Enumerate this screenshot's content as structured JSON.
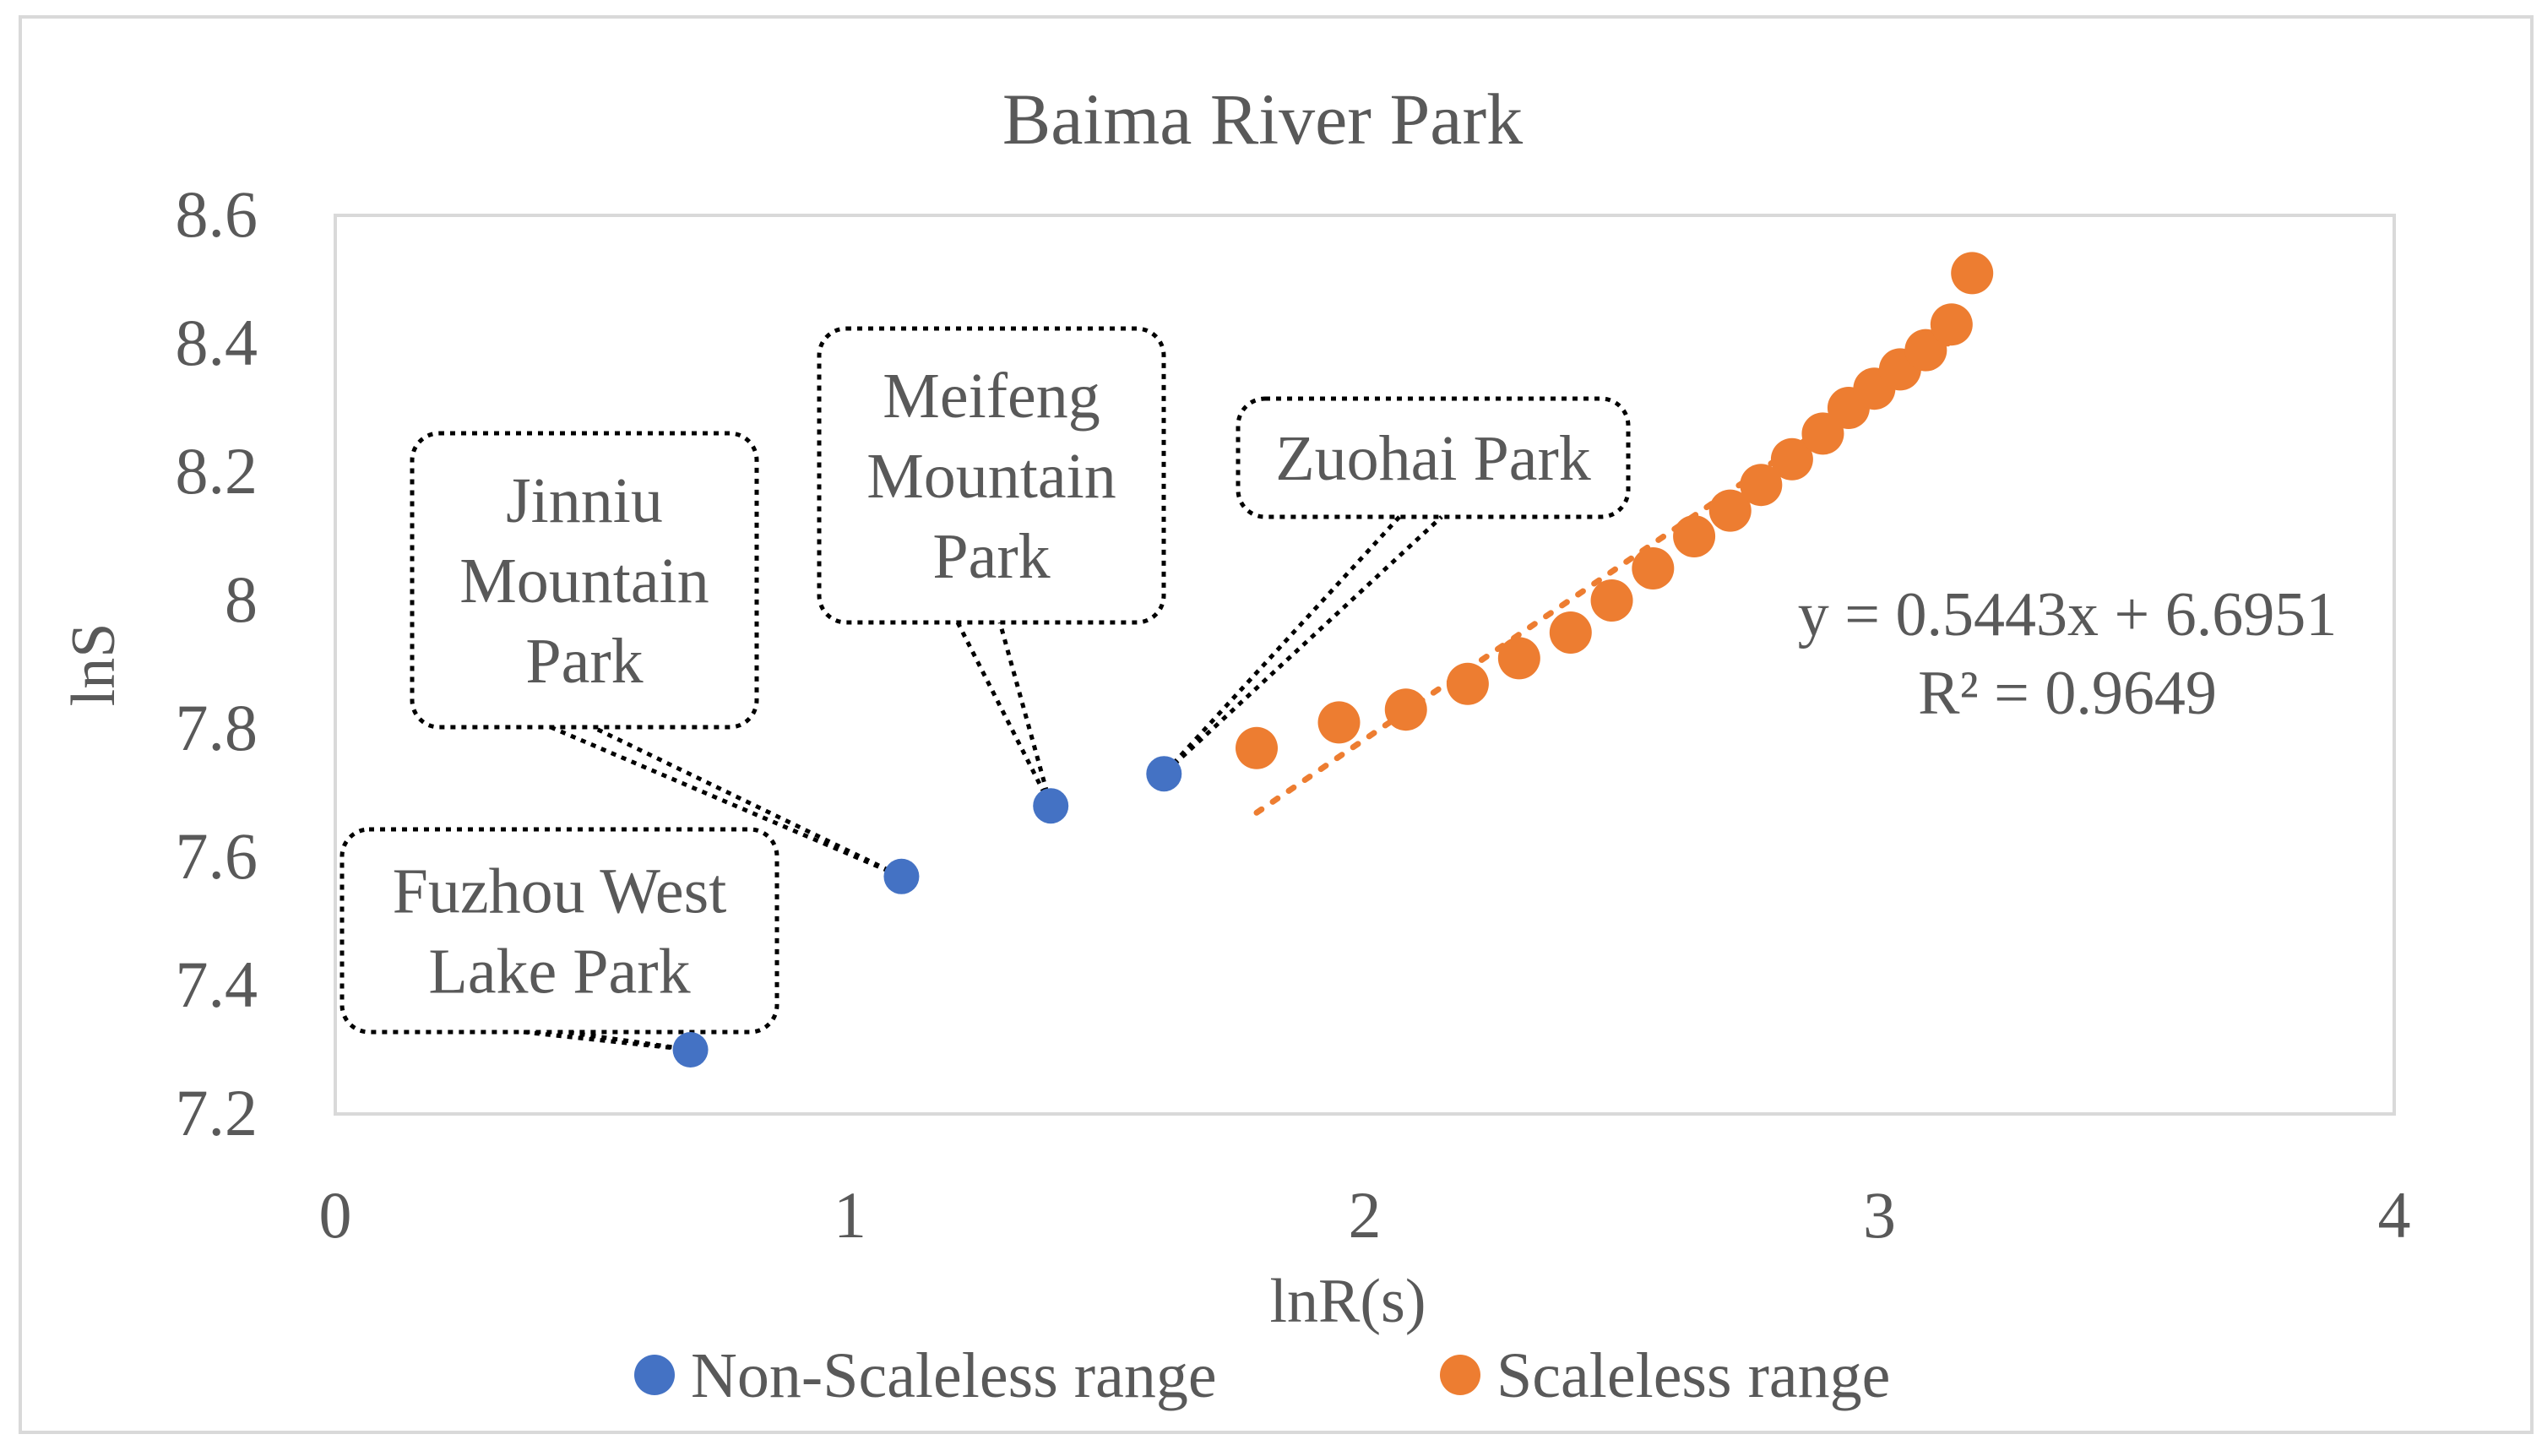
{
  "chart_data": {
    "type": "scatter",
    "title": "Baima River Park",
    "xlabel": "lnR(s)",
    "ylabel": "lnS",
    "xlim": [
      0,
      4
    ],
    "ylim": [
      7.2,
      8.6
    ],
    "x_ticks": [
      "0",
      "1",
      "2",
      "3",
      "4"
    ],
    "y_ticks": [
      "7.2",
      "7.4",
      "7.6",
      "7.8",
      "8",
      "8.2",
      "8.4",
      "8.6"
    ],
    "grid": false,
    "legend_position": "bottom",
    "series": [
      {
        "name": "Non-Scaleless range",
        "color": "#4472c4",
        "x": [
          0.69,
          1.1,
          1.39,
          1.61
        ],
        "y": [
          7.3,
          7.57,
          7.68,
          7.73
        ]
      },
      {
        "name": "Scaleless range",
        "color": "#ed7d31",
        "x": [
          1.79,
          1.95,
          2.08,
          2.2,
          2.3,
          2.4,
          2.48,
          2.56,
          2.64,
          2.71,
          2.77,
          2.83,
          2.89,
          2.94,
          2.99,
          3.04,
          3.09,
          3.14,
          3.18
        ],
        "y": [
          7.77,
          7.81,
          7.83,
          7.87,
          7.91,
          7.95,
          8.0,
          8.05,
          8.1,
          8.14,
          8.18,
          8.22,
          8.26,
          8.3,
          8.33,
          8.36,
          8.39,
          8.43,
          8.51
        ]
      }
    ],
    "trendline": {
      "series": "Scaleless range",
      "slope": 0.5443,
      "intercept": 6.6951,
      "x_range": [
        1.79,
        3.18
      ],
      "color": "#ed7d31",
      "equation_label": "y = 0.5443x + 6.6951",
      "r2_label": "R² = 0.9649"
    },
    "annotations": [
      {
        "lines": [
          "Fuzhou West",
          "Lake Park"
        ],
        "x": 0.69,
        "y": 7.3
      },
      {
        "lines": [
          "Jinniu",
          "Mountain",
          "Park"
        ],
        "x": 1.1,
        "y": 7.57
      },
      {
        "lines": [
          "Meifeng",
          "Mountain",
          "Park"
        ],
        "x": 1.39,
        "y": 7.68
      },
      {
        "lines": [
          "Zuohai Park"
        ],
        "x": 1.61,
        "y": 7.73
      }
    ]
  }
}
